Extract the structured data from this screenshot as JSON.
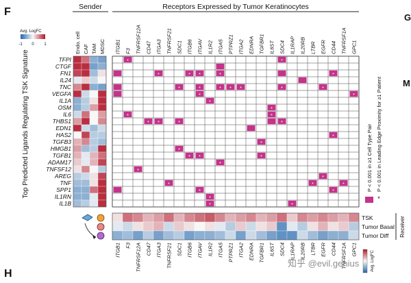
{
  "panel_letters": [
    "F",
    "H",
    "G",
    "M"
  ],
  "sender_header": "Sender",
  "receptors_header": "Receptors Expressed by Tumor Keratinocytes",
  "receiver_label": "Receiver",
  "y_axis_title": "Top Predicted Ligands Regulating TSK Signature",
  "avg_logfc_label": "Avg. LogFC",
  "avg_logfc_ticks": [
    "-1",
    "0",
    "1"
  ],
  "bottom_logfc_label": "Avg. LogFC",
  "legend_box_text": "P < 0.001 in ≥1 Cell Type Pair",
  "legend_star_text": "P < 0.001 in Leading Edge Proximity for ≥1 Patient",
  "watermark": "知乎 @evil.genius",
  "colors": {
    "magenta": "#c4338a",
    "red": "#b2182b",
    "blue": "#2166ac",
    "white": "#f7f7f7"
  },
  "chart_data": {
    "type": "heatmap",
    "senders": [
      "Endo. cell",
      "CAF",
      "TAM",
      "MDSC"
    ],
    "ligands": [
      "TFPI",
      "CTGF",
      "FN1",
      "IL24",
      "TNC",
      "VEGFA",
      "IL1A",
      "OSM",
      "IL6",
      "THBS1",
      "EDN1",
      "HAS2",
      "TGFB3",
      "HMGB1",
      "TGFB1",
      "ADAM17",
      "TNFSF12",
      "AREG",
      "TNF",
      "SPP1",
      "IL1RN",
      "IL1B"
    ],
    "receptors": [
      "ITGB1",
      "F3",
      "TNFRSF12A",
      "CD47",
      "ITGA3",
      "TNFRSF21",
      "SDC1",
      "ITGB6",
      "ITGAV",
      "IL1R2",
      "ITGA5",
      "PTPRZ1",
      "ITGA2",
      "EDNRA",
      "TGFBR1",
      "IL6ST",
      "SDC4",
      "IL1RAP",
      "IL20RB",
      "LTBR",
      "EGFR",
      "CD44",
      "TNFRSF1A",
      "GPC1"
    ],
    "receivers": [
      "TSK",
      "Tumor Basal",
      "Tumor Diff"
    ],
    "sender_logfc": [
      [
        0.9,
        0.6,
        -0.5,
        -0.6
      ],
      [
        0.9,
        0.9,
        -0.6,
        -0.5
      ],
      [
        0.8,
        0.9,
        -0.4,
        0.1
      ],
      [
        -0.1,
        0.2,
        -0.2,
        0.0
      ],
      [
        0.5,
        0.9,
        -0.5,
        -0.6
      ],
      [
        0.9,
        -0.2,
        0.0,
        0.9
      ],
      [
        -0.5,
        -0.3,
        0.1,
        0.9
      ],
      [
        -0.5,
        -0.3,
        0.4,
        0.9
      ],
      [
        -0.2,
        0.6,
        0.0,
        0.4
      ],
      [
        0.4,
        0.9,
        0.0,
        0.5
      ],
      [
        0.9,
        -0.2,
        -0.4,
        -0.2
      ],
      [
        0.0,
        0.8,
        -0.3,
        -0.3
      ],
      [
        0.3,
        0.5,
        -0.3,
        -0.4
      ],
      [
        0.4,
        -0.4,
        -0.3,
        0.9
      ],
      [
        0.3,
        -0.1,
        0.3,
        0.6
      ],
      [
        0.2,
        -0.1,
        0.3,
        0.8
      ],
      [
        0.1,
        0.5,
        0.0,
        -0.3
      ],
      [
        -0.3,
        -0.2,
        0.1,
        0.8
      ],
      [
        -0.4,
        -0.4,
        0.1,
        0.9
      ],
      [
        -0.5,
        -0.5,
        0.6,
        0.9
      ],
      [
        -0.5,
        -0.5,
        -0.1,
        0.9
      ],
      [
        -0.4,
        -0.3,
        -0.1,
        0.9
      ]
    ],
    "interactions": [
      {
        "l": "TFPI",
        "r": "F3",
        "star": true
      },
      {
        "l": "TFPI",
        "r": "SDC4",
        "star": true
      },
      {
        "l": "CTGF",
        "r": "ITGA5",
        "star": false
      },
      {
        "l": "FN1",
        "r": "ITGB1",
        "star": false
      },
      {
        "l": "FN1",
        "r": "ITGA3",
        "star": true
      },
      {
        "l": "FN1",
        "r": "ITGB6",
        "star": true
      },
      {
        "l": "FN1",
        "r": "ITGAV",
        "star": true
      },
      {
        "l": "FN1",
        "r": "ITGA5",
        "star": true
      },
      {
        "l": "FN1",
        "r": "SDC4",
        "star": false
      },
      {
        "l": "FN1",
        "r": "CD44",
        "star": true
      },
      {
        "l": "IL24",
        "r": "IL20RB",
        "star": false
      },
      {
        "l": "TNC",
        "r": "ITGB1",
        "star": false
      },
      {
        "l": "TNC",
        "r": "SDC1",
        "star": true
      },
      {
        "l": "TNC",
        "r": "ITGAV",
        "star": true
      },
      {
        "l": "TNC",
        "r": "ITGA5",
        "star": true
      },
      {
        "l": "TNC",
        "r": "PTPRZ1",
        "star": true
      },
      {
        "l": "TNC",
        "r": "ITGA2",
        "star": true
      },
      {
        "l": "TNC",
        "r": "SDC4",
        "star": true
      },
      {
        "l": "TNC",
        "r": "EGFR",
        "star": true
      },
      {
        "l": "VEGFA",
        "r": "ITGB1",
        "star": false
      },
      {
        "l": "VEGFA",
        "r": "ITGAV",
        "star": true
      },
      {
        "l": "VEGFA",
        "r": "GPC1",
        "star": true
      },
      {
        "l": "IL1A",
        "r": "IL1R2",
        "star": true
      },
      {
        "l": "OSM",
        "r": "IL6ST",
        "star": true
      },
      {
        "l": "IL6",
        "r": "IL6ST",
        "star": true
      },
      {
        "l": "IL6",
        "r": "F3",
        "star": true
      },
      {
        "l": "THBS1",
        "r": "CD47",
        "star": true
      },
      {
        "l": "THBS1",
        "r": "ITGA3",
        "star": true
      },
      {
        "l": "THBS1",
        "r": "SDC1",
        "star": true
      },
      {
        "l": "THBS1",
        "r": "IL6ST",
        "star": false
      },
      {
        "l": "THBS1",
        "r": "SDC4",
        "star": true
      },
      {
        "l": "EDN1",
        "r": "EDNRA",
        "star": false
      },
      {
        "l": "HAS2",
        "r": "CD44",
        "star": true
      },
      {
        "l": "TGFB3",
        "r": "TGFBR1",
        "star": true
      },
      {
        "l": "HMGB1",
        "r": "SDC1",
        "star": true
      },
      {
        "l": "TGFB1",
        "r": "ITGB6",
        "star": true
      },
      {
        "l": "TGFB1",
        "r": "ITGAV",
        "star": true
      },
      {
        "l": "TGFB1",
        "r": "TGFBR1",
        "star": true
      },
      {
        "l": "ADAM17",
        "r": "ITGA5",
        "star": true
      },
      {
        "l": "TNFSF12",
        "r": "TNFRSF12A",
        "star": true
      },
      {
        "l": "TNF",
        "r": "TNFRSF21",
        "star": true
      },
      {
        "l": "TNF",
        "r": "LTBR",
        "star": true
      },
      {
        "l": "TNF",
        "r": "TNFRSF1A",
        "star": true
      },
      {
        "l": "AREG",
        "r": "EGFR",
        "star": true
      },
      {
        "l": "SPP1",
        "r": "ITGAV",
        "star": true
      },
      {
        "l": "SPP1",
        "r": "ITGB1",
        "star": false
      },
      {
        "l": "SPP1",
        "r": "CD44",
        "star": true
      },
      {
        "l": "IL1RN",
        "r": "IL1R2",
        "star": true
      },
      {
        "l": "IL1B",
        "r": "IL1R2",
        "star": true
      },
      {
        "l": "IL1B",
        "r": "IL1RAP",
        "star": true
      }
    ],
    "receiver_logfc": [
      [
        0.1,
        0.6,
        0.5,
        0.3,
        0.4,
        0.6,
        0.3,
        0.5,
        0.6,
        0.7,
        0.5,
        0.3,
        0.4,
        0.5,
        0.3,
        0.4,
        0.6,
        0.2,
        0.5,
        0.4,
        0.5,
        0.4,
        0.3,
        0.5
      ],
      [
        -0.1,
        -0.2,
        0.1,
        0.2,
        0.3,
        -0.2,
        0.2,
        0.1,
        0.0,
        0.1,
        -0.1,
        -0.3,
        0.2,
        -0.2,
        0.1,
        0.2,
        -0.7,
        -0.1,
        -0.3,
        0.1,
        0.3,
        0.1,
        0.2,
        -0.3
      ],
      [
        -0.5,
        -0.4,
        -0.6,
        -0.3,
        -0.6,
        -0.4,
        -0.3,
        -0.6,
        -0.5,
        -0.5,
        -0.4,
        -0.2,
        -0.6,
        -0.2,
        -0.4,
        -0.6,
        -0.7,
        -0.7,
        -0.2,
        -0.4,
        -0.6,
        -0.5,
        -0.5,
        -0.2
      ]
    ],
    "xlabel": "",
    "ylabel": "Top Predicted Ligands Regulating TSK Signature"
  }
}
